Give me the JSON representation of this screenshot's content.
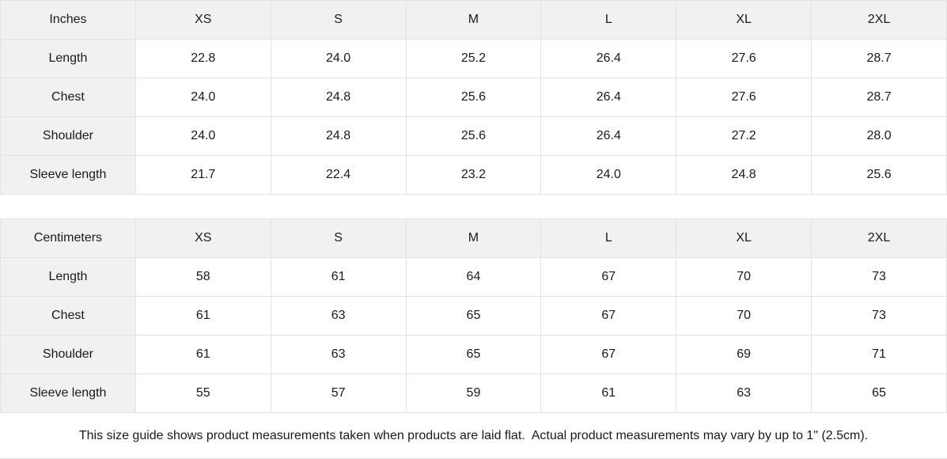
{
  "colors": {
    "header_cell_background": "#f1f1f1",
    "grid_border": "#e2e2e2",
    "text": "#1a1a1a",
    "background": "#ffffff"
  },
  "tables": [
    {
      "unit_label": "Inches",
      "size_headers": [
        "XS",
        "S",
        "M",
        "L",
        "XL",
        "2XL"
      ],
      "rows": [
        {
          "label": "Length",
          "values": [
            "22.8",
            "24.0",
            "25.2",
            "26.4",
            "27.6",
            "28.7"
          ]
        },
        {
          "label": "Chest",
          "values": [
            "24.0",
            "24.8",
            "25.6",
            "26.4",
            "27.6",
            "28.7"
          ]
        },
        {
          "label": "Shoulder",
          "values": [
            "24.0",
            "24.8",
            "25.6",
            "26.4",
            "27.2",
            "28.0"
          ]
        },
        {
          "label": "Sleeve length",
          "values": [
            "21.7",
            "22.4",
            "23.2",
            "24.0",
            "24.8",
            "25.6"
          ]
        }
      ]
    },
    {
      "unit_label": "Centimeters",
      "size_headers": [
        "XS",
        "S",
        "M",
        "L",
        "XL",
        "2XL"
      ],
      "rows": [
        {
          "label": "Length",
          "values": [
            "58",
            "61",
            "64",
            "67",
            "70",
            "73"
          ]
        },
        {
          "label": "Chest",
          "values": [
            "61",
            "63",
            "65",
            "67",
            "70",
            "73"
          ]
        },
        {
          "label": "Shoulder",
          "values": [
            "61",
            "63",
            "65",
            "67",
            "69",
            "71"
          ]
        },
        {
          "label": "Sleeve length",
          "values": [
            "55",
            "57",
            "59",
            "61",
            "63",
            "65"
          ]
        }
      ]
    }
  ],
  "footer": {
    "note": "This size guide shows product measurements taken when products are laid flat.  Actual product measurements may vary by up to 1\" (2.5cm)."
  }
}
